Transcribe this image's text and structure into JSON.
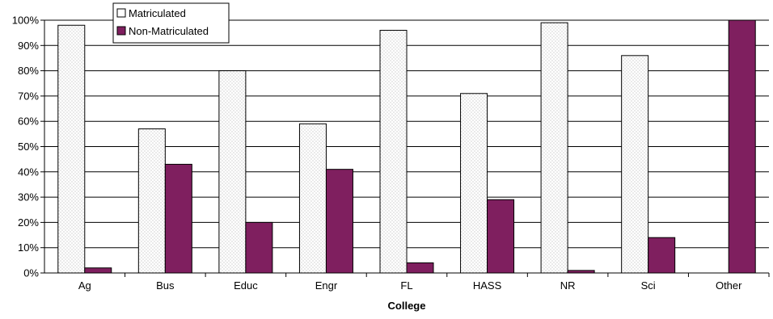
{
  "chart_data": {
    "type": "bar",
    "xlabel": "College",
    "ylabel": "",
    "ylim": [
      0,
      100
    ],
    "y_ticks": [
      "0%",
      "10%",
      "20%",
      "30%",
      "40%",
      "50%",
      "60%",
      "70%",
      "80%",
      "90%",
      "100%"
    ],
    "grid": true,
    "legend_position": "top-left",
    "categories": [
      "Ag",
      "Bus",
      "Educ",
      "Engr",
      "FL",
      "HASS",
      "NR",
      "Sci",
      "Other"
    ],
    "series": [
      {
        "name": "Matriculated",
        "color": "#ffffff",
        "pattern": "dotted",
        "values": [
          98,
          57,
          80,
          59,
          96,
          71,
          99,
          86,
          0
        ]
      },
      {
        "name": "Non-Matriculated",
        "color": "#7f1f5f",
        "values": [
          2,
          43,
          20,
          41,
          4,
          29,
          1,
          14,
          100
        ]
      }
    ]
  }
}
